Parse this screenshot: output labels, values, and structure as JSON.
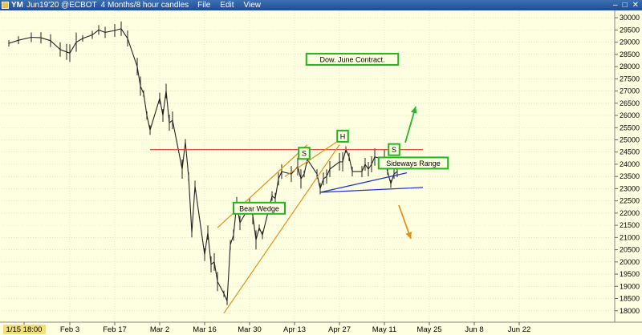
{
  "window": {
    "symbol": "YM",
    "contract": "Jun19'20 @ECBOT",
    "period": "4 Months/8 hour candles",
    "menus": [
      "File",
      "Edit",
      "View"
    ],
    "controls": {
      "minimize": "–",
      "maximize": "□",
      "close": "✕"
    }
  },
  "chart_data": {
    "type": "line",
    "title": "",
    "xlabel": "",
    "ylabel": "",
    "ylim": [
      17500,
      30300
    ],
    "y_ticks": [
      18000,
      18500,
      19000,
      19500,
      20000,
      20500,
      21000,
      21500,
      22000,
      22500,
      23000,
      23500,
      24000,
      24500,
      25000,
      25500,
      26000,
      26500,
      27000,
      27500,
      28000,
      28500,
      29000,
      29500,
      30000
    ],
    "x_tick_labels": [
      "1/15 18:00",
      "Feb 3",
      "Feb 17",
      "Mar 2",
      "Mar 16",
      "Mar 30",
      "Apr 13",
      "Apr 27",
      "May 11",
      "May 25",
      "Jun 8",
      "Jun 22"
    ],
    "price_series": {
      "name": "YM Jun19'20",
      "points": [
        [
          "Jan 15",
          28950
        ],
        [
          "Jan 18",
          29080
        ],
        [
          "Jan 22",
          29200
        ],
        [
          "Jan 25",
          29180
        ],
        [
          "Jan 28",
          29060
        ],
        [
          "Jan 31",
          28700
        ],
        [
          "Feb 2",
          28600
        ],
        [
          "Feb 3",
          28550
        ],
        [
          "Feb 5",
          29000
        ],
        [
          "Feb 7",
          29150
        ],
        [
          "Feb 10",
          29300
        ],
        [
          "Feb 12",
          29500
        ],
        [
          "Feb 14",
          29400
        ],
        [
          "Feb 17",
          29480
        ],
        [
          "Feb 19",
          29550
        ],
        [
          "Feb 21",
          29150
        ],
        [
          "Feb 24",
          28000
        ],
        [
          "Feb 25",
          27200
        ],
        [
          "Feb 26",
          26900
        ],
        [
          "Feb 27",
          26000
        ],
        [
          "Feb 28",
          25400
        ],
        [
          "Mar 2",
          26700
        ],
        [
          "Mar 3",
          26000
        ],
        [
          "Mar 4",
          27000
        ],
        [
          "Mar 5",
          25700
        ],
        [
          "Mar 6",
          25800
        ],
        [
          "Mar 9",
          23800
        ],
        [
          "Mar 10",
          24900
        ],
        [
          "Mar 11",
          23500
        ],
        [
          "Mar 12",
          21200
        ],
        [
          "Mar 13",
          23100
        ],
        [
          "Mar 16",
          20300
        ],
        [
          "Mar 17",
          21200
        ],
        [
          "Mar 18",
          19900
        ],
        [
          "Mar 19",
          20000
        ],
        [
          "Mar 20",
          19200
        ],
        [
          "Mar 22",
          18700
        ],
        [
          "Mar 23",
          18400
        ],
        [
          "Mar 24",
          20700
        ],
        [
          "Mar 25",
          21100
        ],
        [
          "Mar 26",
          22400
        ],
        [
          "Mar 27",
          21600
        ],
        [
          "Mar 30",
          22300
        ],
        [
          "Mar 31",
          21900
        ],
        [
          "Apr 1",
          20900
        ],
        [
          "Apr 2",
          21400
        ],
        [
          "Apr 3",
          21100
        ],
        [
          "Apr 6",
          22700
        ],
        [
          "Apr 7",
          22600
        ],
        [
          "Apr 8",
          23400
        ],
        [
          "Apr 9",
          23700
        ],
        [
          "Apr 12",
          23600
        ],
        [
          "Apr 14",
          23900
        ],
        [
          "Apr 15",
          23400
        ],
        [
          "Apr 16",
          23600
        ],
        [
          "Apr 17",
          24200
        ],
        [
          "Apr 20",
          23600
        ],
        [
          "Apr 21",
          23000
        ],
        [
          "Apr 22",
          23400
        ],
        [
          "Apr 23",
          23500
        ],
        [
          "Apr 24",
          23800
        ],
        [
          "Apr 27",
          24100
        ],
        [
          "Apr 28",
          24100
        ],
        [
          "Apr 29",
          24600
        ],
        [
          "Apr 30",
          24300
        ],
        [
          "May 1",
          23700
        ],
        [
          "May 4",
          23700
        ],
        [
          "May 5",
          24000
        ],
        [
          "May 6",
          23800
        ],
        [
          "May 7",
          24000
        ],
        [
          "May 8",
          24300
        ],
        [
          "May 11",
          24200
        ],
        [
          "May 12",
          23700
        ],
        [
          "May 13",
          23200
        ],
        [
          "May 14",
          23600
        ],
        [
          "May 15",
          23700
        ]
      ]
    },
    "lines": [
      {
        "name": "resistance",
        "color": "#e03a2a",
        "from": [
          "Feb 28",
          24600
        ],
        "to": [
          "May 23",
          24600
        ]
      },
      {
        "name": "support",
        "color": "#2233cc",
        "from": [
          "Apr 21",
          22850
        ],
        "to": [
          "May 23",
          23050
        ]
      },
      {
        "name": "neckline",
        "color": "#2233cc",
        "from": [
          "Apr 21",
          22850
        ],
        "to": [
          "May 18",
          23650
        ]
      },
      {
        "name": "wedge-upper",
        "color": "#e3901a",
        "from": [
          "Mar 20",
          21400
        ],
        "to": [
          "Apr 17",
          24800
        ]
      },
      {
        "name": "wedge-lower",
        "color": "#e3901a",
        "from": [
          "Mar 22",
          17900
        ],
        "to": [
          "Apr 27",
          24800
        ]
      },
      {
        "name": "wedge-upper-2",
        "color": "#e3901a",
        "from": [
          "Apr 10",
          23500
        ],
        "to": [
          "Apr 26",
          24900
        ]
      }
    ],
    "annotations": [
      {
        "text": "Dow. June Contract.",
        "date": "May 1",
        "value": 28300
      },
      {
        "text": "Sideways Range",
        "date": "May 20",
        "value": 24050
      },
      {
        "text": "Bear Wedge",
        "date": "Apr 2",
        "value": 22200
      },
      {
        "text": "S",
        "date": "Apr 16",
        "value": 24450
      },
      {
        "text": "H",
        "date": "Apr 28",
        "value": 25150
      },
      {
        "text": "S",
        "date": "May 14",
        "value": 24600
      }
    ],
    "arrows": [
      {
        "direction": "up",
        "color": "#2cb52c"
      },
      {
        "direction": "down",
        "color": "#e3901a"
      }
    ]
  }
}
